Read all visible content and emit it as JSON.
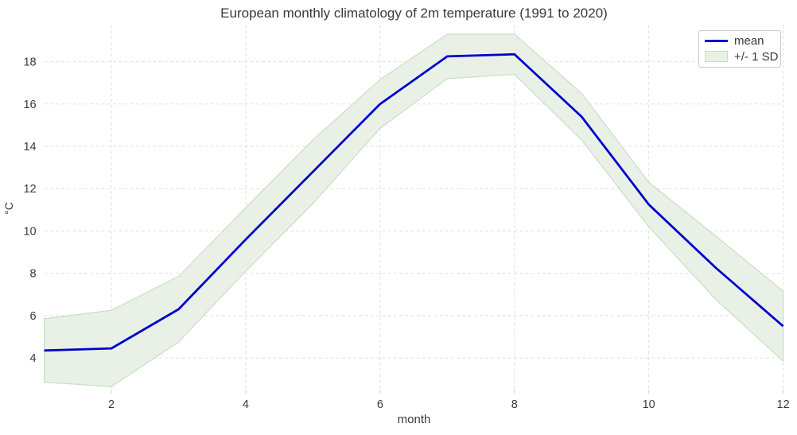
{
  "title": "European monthly climatology of 2m temperature (1991 to 2020)",
  "legend": {
    "items": [
      {
        "label": "mean",
        "swatch": "line-swatch"
      },
      {
        "label": "+/- 1 SD",
        "swatch": "band-swatch"
      }
    ]
  },
  "chart_data": {
    "type": "line",
    "title": "European monthly climatology of 2m temperature (1991 to 2020)",
    "xlabel": "month",
    "ylabel": "°C",
    "x": [
      1,
      2,
      3,
      4,
      5,
      6,
      7,
      8,
      9,
      10,
      11,
      12
    ],
    "series": [
      {
        "name": "mean",
        "color": "#0000cc",
        "values": [
          4.35,
          4.45,
          6.3,
          9.6,
          12.8,
          16.0,
          18.25,
          18.35,
          15.4,
          11.25,
          8.25,
          5.5
        ]
      }
    ],
    "band": {
      "name": "+/- 1 SD",
      "fill": "#e9f1e7",
      "edge": "#c8dec5",
      "upper": [
        5.85,
        6.25,
        7.85,
        11.1,
        14.3,
        17.15,
        19.3,
        19.3,
        16.5,
        12.3,
        9.75,
        7.15
      ],
      "lower": [
        2.85,
        2.65,
        4.75,
        8.1,
        11.3,
        14.85,
        17.2,
        17.4,
        14.3,
        10.2,
        6.75,
        3.85
      ]
    },
    "xlim": [
      1,
      12
    ],
    "ylim": [
      2.5,
      19.75
    ],
    "xticks": [
      2,
      4,
      6,
      8,
      10,
      12
    ],
    "yticks": [
      4,
      6,
      8,
      10,
      12,
      14,
      16,
      18
    ],
    "grid": true,
    "grid_style": "dashed",
    "legend_position": "top-right",
    "colors": {
      "line": "#0000cc",
      "band_fill": "#e9f1e7",
      "band_edge": "#c8dec5",
      "grid": "#e0e0e0",
      "tick": "#cfcfcf",
      "text": "#3a3a3a",
      "background": "#ffffff"
    }
  }
}
